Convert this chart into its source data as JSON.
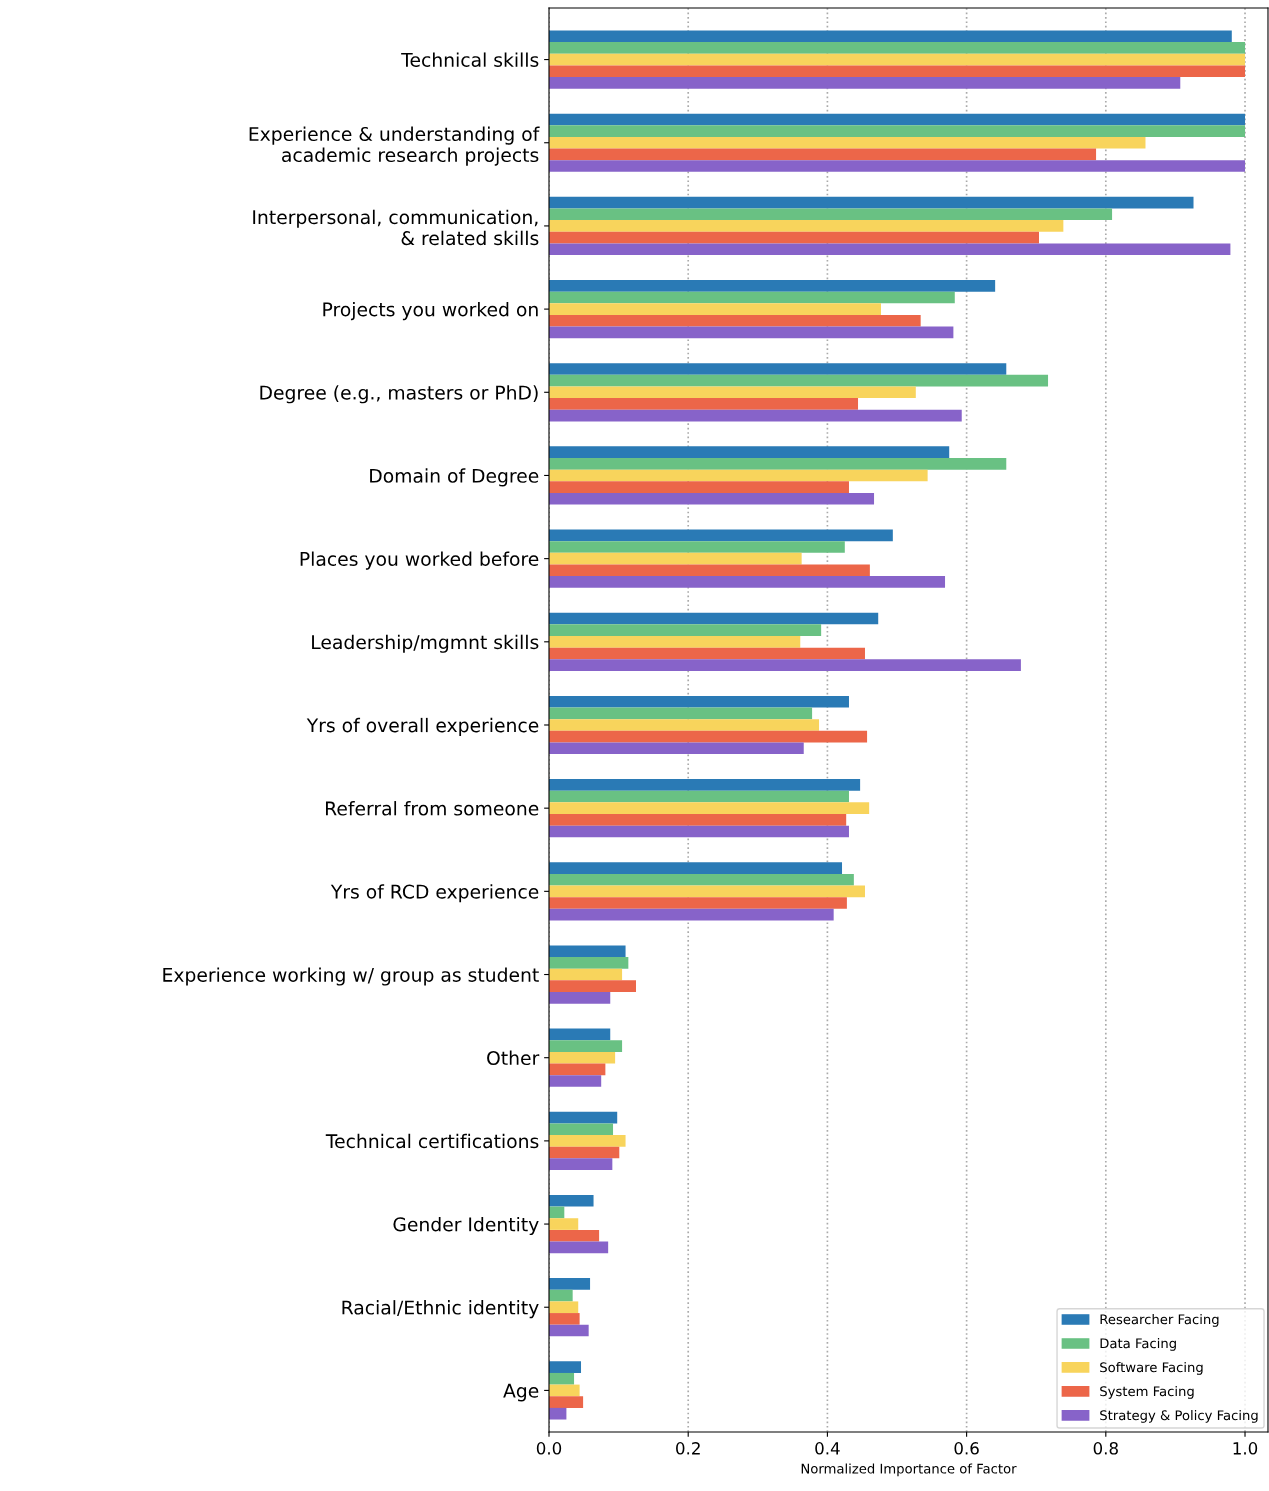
{
  "chart_data": {
    "type": "bar",
    "orientation": "horizontal",
    "xlabel": "Normalized Importance of Factor",
    "categories": [
      "Technical skills",
      "Experience & understanding of\nacademic research projects",
      "Interpersonal, communication,\n& related skills",
      "Projects you worked on",
      "Degree (e.g., masters or PhD)",
      "Domain of Degree",
      "Places you worked before",
      "Leadership/mgmnt skills",
      "Yrs of overall experience",
      "Referral from someone",
      "Yrs of RCD experience",
      "Experience working w/ group as student",
      "Other",
      "Technical certifications",
      "Gender Identity",
      "Racial/Ethnic identity",
      "Age"
    ],
    "series": [
      {
        "name": "Researcher Facing",
        "color": "#2a7ab5",
        "values": [
          0.981,
          1.0,
          0.926,
          0.641,
          0.657,
          0.575,
          0.494,
          0.473,
          0.431,
          0.447,
          0.421,
          0.11,
          0.088,
          0.098,
          0.064,
          0.059,
          0.046
        ]
      },
      {
        "name": "Data Facing",
        "color": "#69c183",
        "values": [
          1.0,
          1.0,
          0.809,
          0.583,
          0.717,
          0.657,
          0.425,
          0.391,
          0.378,
          0.431,
          0.438,
          0.114,
          0.105,
          0.092,
          0.022,
          0.034,
          0.036
        ]
      },
      {
        "name": "Software Facing",
        "color": "#f8d45c",
        "values": [
          1.0,
          0.857,
          0.739,
          0.477,
          0.527,
          0.544,
          0.363,
          0.361,
          0.388,
          0.46,
          0.454,
          0.105,
          0.095,
          0.11,
          0.042,
          0.042,
          0.044
        ]
      },
      {
        "name": "System Facing",
        "color": "#ec6649",
        "values": [
          1.0,
          0.786,
          0.704,
          0.534,
          0.444,
          0.431,
          0.461,
          0.454,
          0.457,
          0.427,
          0.428,
          0.125,
          0.081,
          0.101,
          0.072,
          0.044,
          0.049
        ]
      },
      {
        "name": "Strategy & Policy Facing",
        "color": "#8763c9",
        "values": [
          0.907,
          1.0,
          0.979,
          0.581,
          0.593,
          0.467,
          0.569,
          0.678,
          0.366,
          0.431,
          0.409,
          0.088,
          0.075,
          0.091,
          0.085,
          0.057,
          0.025
        ]
      }
    ],
    "xlim": [
      0,
      1.033
    ],
    "xticks": [
      {
        "value": 0,
        "label": "0.0"
      },
      0.2,
      0.4,
      0.6,
      0.8,
      {
        "value": 1,
        "label": "1.0"
      }
    ],
    "grid": "x",
    "legend": "bottom right"
  }
}
